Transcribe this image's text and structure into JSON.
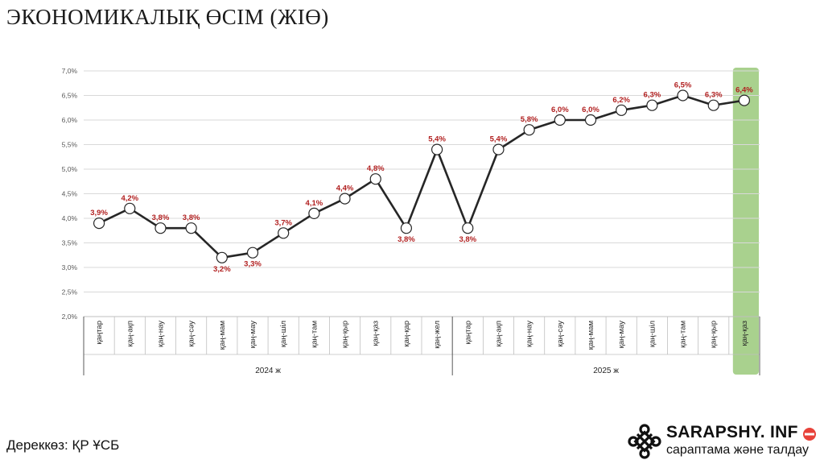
{
  "title": "ЭКОНОМИКАЛЫҚ ӨСІМ (ЖІӨ)",
  "source": "Дереккөз: ҚР ҰСБ",
  "brand": {
    "name": "SARAPSHY. INF",
    "tagline": "сараптама және талдау",
    "logo_icon": "knot-ornament-icon"
  },
  "colors": {
    "line": "#262626",
    "label": "#b11f1f",
    "highlight": "#a9d18e",
    "grid": "#d9d9d9",
    "axis_text": "#595959",
    "brand_accent": "#e8423a"
  },
  "chart_data": {
    "type": "line",
    "title": "ЭКОНОМИКАЛЫҚ ӨСІМ (ЖІӨ)",
    "categories": [
      "қаңтар",
      "қаң-ақп",
      "қаң-нау",
      "қаң-сәу",
      "қаң-мам",
      "қаң-мау",
      "қаң-шіл",
      "қаң-там",
      "қаң-қыр",
      "қаң-қаз",
      "қаң-қар",
      "қаң-жел",
      "қаңтар",
      "қаң-ақп",
      "қаң-нау",
      "қаң-сәу",
      "қаң-мам",
      "қаң-мау",
      "қаң-шіл",
      "қаң-там",
      "қаң-қыр",
      "қаң-қаз"
    ],
    "groups": [
      {
        "label": "2024 ж",
        "count": 12
      },
      {
        "label": "2025 ж",
        "count": 10
      }
    ],
    "series": [
      {
        "values": [
          3.9,
          4.2,
          3.8,
          3.8,
          3.2,
          3.3,
          3.7,
          4.1,
          4.4,
          4.8,
          3.8,
          5.4,
          3.8,
          5.4,
          5.8,
          6.0,
          6.0,
          6.2,
          6.3,
          6.5,
          6.3,
          6.4
        ]
      }
    ],
    "data_labels": [
      "3,9%",
      "4,2%",
      "3,8%",
      "3,8%",
      "3,2%",
      "3,3%",
      "3,7%",
      "4,1%",
      "4,4%",
      "4,8%",
      "3,8%",
      "5,4%",
      "3,8%",
      "5,4%",
      "5,8%",
      "6,0%",
      "6,0%",
      "6,2%",
      "6,3%",
      "6,5%",
      "6,3%",
      "6,4%"
    ],
    "label_below": [
      false,
      false,
      false,
      false,
      true,
      true,
      false,
      false,
      false,
      false,
      true,
      false,
      true,
      false,
      false,
      false,
      false,
      false,
      false,
      false,
      false,
      false
    ],
    "ylim": [
      2.0,
      7.0
    ],
    "yticks": [
      2.0,
      2.5,
      3.0,
      3.5,
      4.0,
      4.5,
      5.0,
      5.5,
      6.0,
      6.5,
      7.0
    ],
    "ytick_labels": [
      "2,0%",
      "2,5%",
      "3,0%",
      "3,5%",
      "4,0%",
      "4,5%",
      "5,0%",
      "5,5%",
      "6,0%",
      "6,5%",
      "7,0%"
    ],
    "highlight_index": 21,
    "grid": true,
    "legend": "none"
  }
}
